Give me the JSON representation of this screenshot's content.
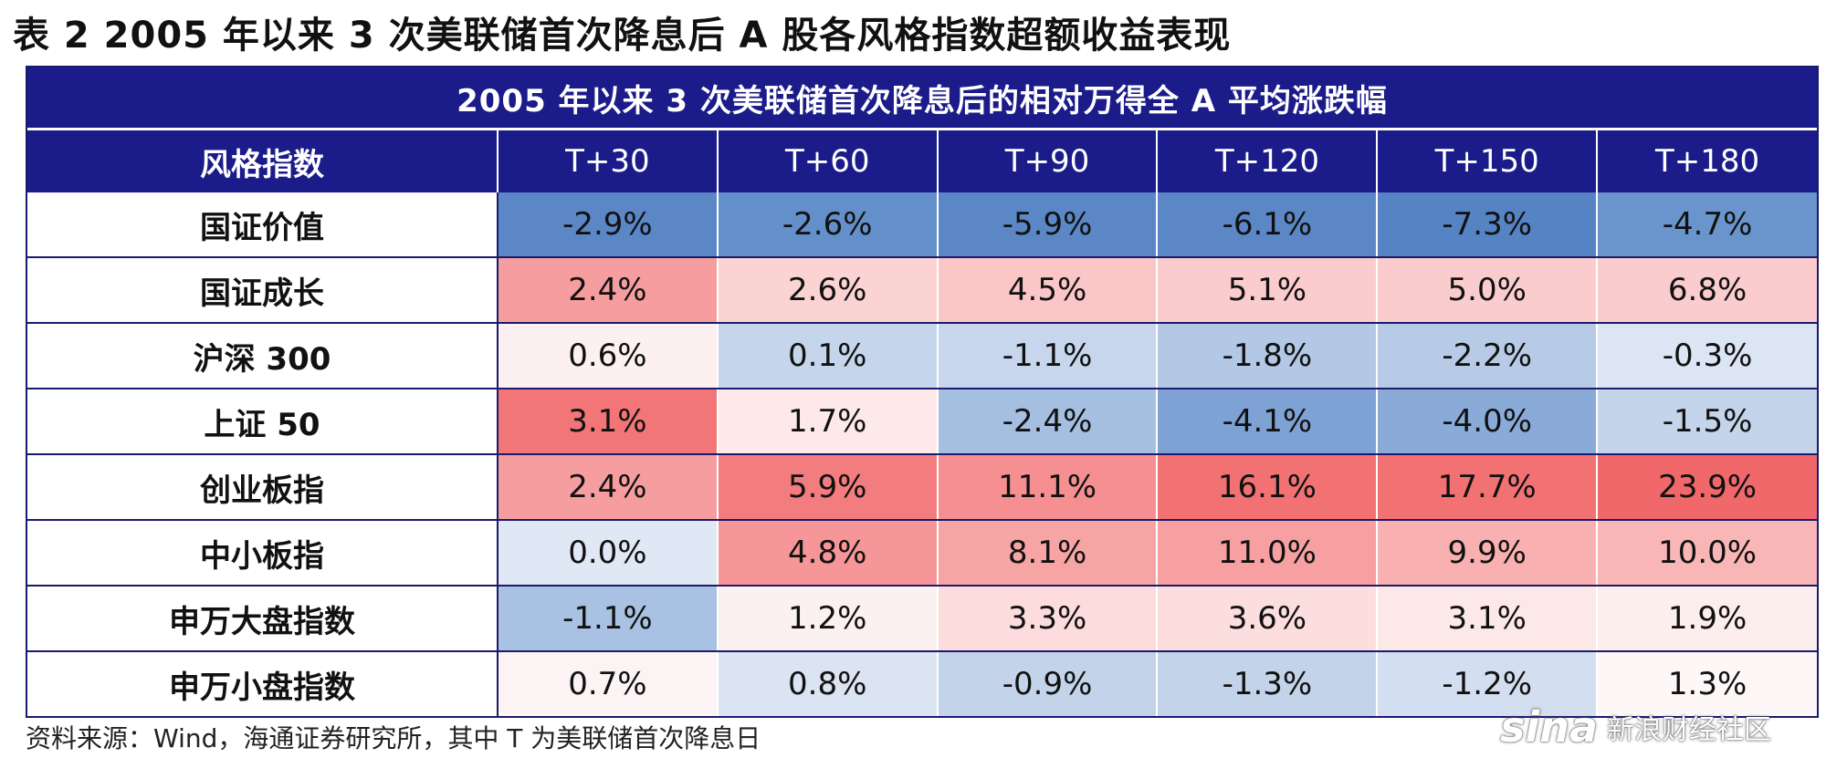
{
  "title": "表 2  2005 年以来 3 次美联储首次降息后 A 股各风格指数超额收益表现",
  "table": {
    "banner": "2005 年以来 3 次美联储首次降息后的相对万得全 A 平均涨跌幅",
    "headers": [
      "风格指数",
      "T+30",
      "T+60",
      "T+90",
      "T+120",
      "T+150",
      "T+180"
    ],
    "rows": [
      {
        "label": "国证价值",
        "cells": [
          {
            "text": "-2.9%",
            "bg": "#5b87c6"
          },
          {
            "text": "-2.6%",
            "bg": "#6390ca"
          },
          {
            "text": "-5.9%",
            "bg": "#5b87c6"
          },
          {
            "text": "-6.1%",
            "bg": "#5b87c6"
          },
          {
            "text": "-7.3%",
            "bg": "#5683c4"
          },
          {
            "text": "-4.7%",
            "bg": "#6a95cc"
          }
        ]
      },
      {
        "label": "国证成长",
        "cells": [
          {
            "text": "2.4%",
            "bg": "#f69e9f"
          },
          {
            "text": "2.6%",
            "bg": "#fbd3d3"
          },
          {
            "text": "4.5%",
            "bg": "#fbc6c7"
          },
          {
            "text": "5.1%",
            "bg": "#fbcccd"
          },
          {
            "text": "5.0%",
            "bg": "#fbcccd"
          },
          {
            "text": "6.8%",
            "bg": "#fbcccd"
          }
        ]
      },
      {
        "label": "沪深 300",
        "cells": [
          {
            "text": "0.6%",
            "bg": "#fdf0f0"
          },
          {
            "text": "0.1%",
            "bg": "#c5d5ec"
          },
          {
            "text": "-1.1%",
            "bg": "#c7d6ec"
          },
          {
            "text": "-1.8%",
            "bg": "#b3c8e5"
          },
          {
            "text": "-2.2%",
            "bg": "#b7cbe6"
          },
          {
            "text": "-0.3%",
            "bg": "#dbe5f3"
          }
        ]
      },
      {
        "label": "上证 50",
        "cells": [
          {
            "text": "3.1%",
            "bg": "#f27577"
          },
          {
            "text": "1.7%",
            "bg": "#fde9e9"
          },
          {
            "text": "-2.4%",
            "bg": "#a5bfe1"
          },
          {
            "text": "-4.1%",
            "bg": "#7ea2d4"
          },
          {
            "text": "-4.0%",
            "bg": "#8aabd8"
          },
          {
            "text": "-1.5%",
            "bg": "#c4d4eb"
          }
        ]
      },
      {
        "label": "创业板指",
        "cells": [
          {
            "text": "2.4%",
            "bg": "#f69e9f"
          },
          {
            "text": "5.9%",
            "bg": "#f37c7e"
          },
          {
            "text": "11.1%",
            "bg": "#f58f91"
          },
          {
            "text": "16.1%",
            "bg": "#f27274"
          },
          {
            "text": "17.7%",
            "bg": "#f27173"
          },
          {
            "text": "23.9%",
            "bg": "#f0686a"
          }
        ]
      },
      {
        "label": "中小板指",
        "cells": [
          {
            "text": "0.0%",
            "bg": "#dfe8f4"
          },
          {
            "text": "4.8%",
            "bg": "#f69698"
          },
          {
            "text": "8.1%",
            "bg": "#f7a4a5"
          },
          {
            "text": "11.0%",
            "bg": "#f6a0a1"
          },
          {
            "text": "9.9%",
            "bg": "#f8b0b1"
          },
          {
            "text": "10.0%",
            "bg": "#f9b6b7"
          }
        ]
      },
      {
        "label": "申万大盘指数",
        "cells": [
          {
            "text": "-1.1%",
            "bg": "#a9c1e2"
          },
          {
            "text": "1.2%",
            "bg": "#fbf1f1"
          },
          {
            "text": "3.3%",
            "bg": "#fcdcdc"
          },
          {
            "text": "3.6%",
            "bg": "#fcdede"
          },
          {
            "text": "3.1%",
            "bg": "#fde8e8"
          },
          {
            "text": "1.9%",
            "bg": "#fdeeee"
          }
        ]
      },
      {
        "label": "申万小盘指数",
        "cells": [
          {
            "text": "0.7%",
            "bg": "#fbf3f4"
          },
          {
            "text": "0.8%",
            "bg": "#dae4f2"
          },
          {
            "text": "-0.9%",
            "bg": "#c3d3ea"
          },
          {
            "text": "-1.3%",
            "bg": "#c3d3ea"
          },
          {
            "text": "-1.2%",
            "bg": "#d3def0"
          },
          {
            "text": "1.3%",
            "bg": "#fdf7f7"
          }
        ]
      }
    ]
  },
  "source": "资料来源：Wind，海通证券研究所，其中 T 为美联储首次降息日",
  "watermark": {
    "logo": "sina",
    "text": "新浪财经社区"
  }
}
